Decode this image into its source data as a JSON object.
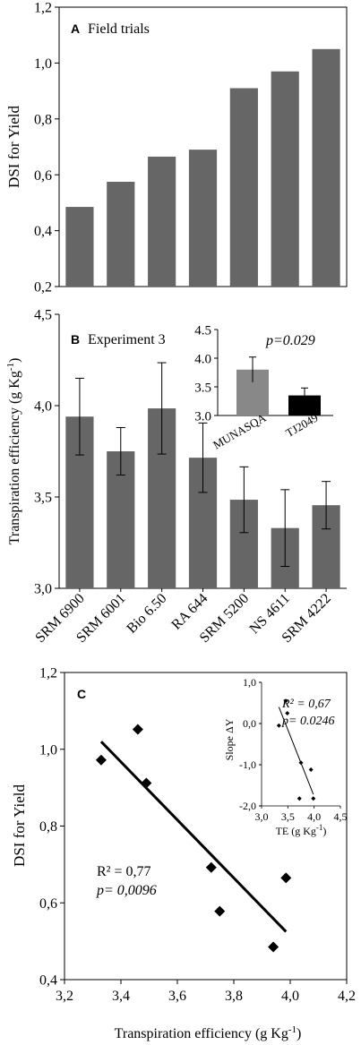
{
  "chart_data": [
    {
      "type": "bar",
      "panel_label": "A",
      "title": "Field trials",
      "ylabel": "DSI for Yield",
      "categories": [
        "SRM 6900",
        "SRM 6001",
        "Bio 6.50",
        "RA 644",
        "SRM 5200",
        "NS 4611",
        "SRM 4222"
      ],
      "values": [
        0.485,
        0.575,
        0.665,
        0.69,
        0.91,
        0.97,
        1.05
      ],
      "ylim": [
        0.2,
        1.2
      ],
      "yticks": [
        "0,2",
        "0,4",
        "0,6",
        "0,8",
        "1,0",
        "1,2"
      ],
      "bar_color": "#666666",
      "grid": false
    },
    {
      "type": "bar",
      "panel_label": "B",
      "title": "Experiment 3",
      "ylabel": "Transpiration efficiency (g Kg-1)",
      "categories": [
        "SRM 6900",
        "SRM 6001",
        "Bio 6.50",
        "RA 644",
        "SRM 5200",
        "NS 4611",
        "SRM 4222"
      ],
      "x_tick_labels": [
        "SRM 6900",
        "SRM 6001",
        "Bio 6.50",
        "RA 644",
        "SRM 5200",
        "NS 4611",
        "SRM 4222"
      ],
      "values": [
        3.94,
        3.75,
        3.985,
        3.715,
        3.485,
        3.33,
        3.455
      ],
      "errors": [
        0.21,
        0.13,
        0.25,
        0.19,
        0.18,
        0.21,
        0.13
      ],
      "ylim": [
        3.0,
        4.5
      ],
      "yticks": [
        "3,0",
        "3,5",
        "4,0",
        "4,5"
      ],
      "bar_color": "#666666",
      "grid": false,
      "inset": {
        "type": "bar",
        "categories": [
          "MUNASQA",
          "TJ2049"
        ],
        "values": [
          3.8,
          3.35
        ],
        "errors": [
          0.22,
          0.13
        ],
        "colors": [
          "#888888",
          "#000000"
        ],
        "ylim": [
          3.0,
          4.5
        ],
        "yticks": [
          "3.0",
          "3.5",
          "4.0",
          "4.5"
        ],
        "annotation": "p=0.029"
      }
    },
    {
      "type": "scatter",
      "panel_label": "C",
      "xlabel": "Transpiration efficiency (g Kg-1)",
      "ylabel": "DSI for Yield",
      "points": [
        {
          "x": 3.33,
          "y": 0.972
        },
        {
          "x": 3.46,
          "y": 1.052
        },
        {
          "x": 3.49,
          "y": 0.912
        },
        {
          "x": 3.72,
          "y": 0.692
        },
        {
          "x": 3.75,
          "y": 0.578
        },
        {
          "x": 3.94,
          "y": 0.485
        },
        {
          "x": 3.985,
          "y": 0.665
        }
      ],
      "trendline": {
        "x": [
          3.33,
          3.985
        ],
        "y": [
          1.02,
          0.525
        ]
      },
      "xlim": [
        3.2,
        4.2
      ],
      "ylim": [
        0.4,
        1.2
      ],
      "xticks": [
        "3,2",
        "3,4",
        "3,6",
        "3,8",
        "4,0",
        "4,2"
      ],
      "yticks": [
        "0,4",
        "0,6",
        "0,8",
        "1,0",
        "1,2"
      ],
      "r2_text": "R² = 0,77",
      "p_text": "p= 0,0096",
      "inset": {
        "type": "scatter",
        "xlabel": "TE (g Kg-1)",
        "ylabel": "Slope ΔY",
        "points": [
          {
            "x": 3.33,
            "y": -0.05
          },
          {
            "x": 3.46,
            "y": 0.55
          },
          {
            "x": 3.49,
            "y": 0.25
          },
          {
            "x": 3.72,
            "y": -1.82
          },
          {
            "x": 3.75,
            "y": -0.95
          },
          {
            "x": 3.94,
            "y": -1.12
          },
          {
            "x": 3.985,
            "y": -1.82
          }
        ],
        "trendline": {
          "x": [
            3.33,
            3.985
          ],
          "y": [
            0.4,
            -1.72
          ]
        },
        "xlim": [
          3.0,
          4.5
        ],
        "ylim": [
          -2.0,
          1.0
        ],
        "xticks": [
          "3,0",
          "3,5",
          "4,0",
          "4,5"
        ],
        "yticks": [
          "-2,0",
          "-1,0",
          "0,0",
          "1,0"
        ],
        "r2_text": "R² = 0,67",
        "p_text": "p= 0.0246"
      }
    }
  ]
}
